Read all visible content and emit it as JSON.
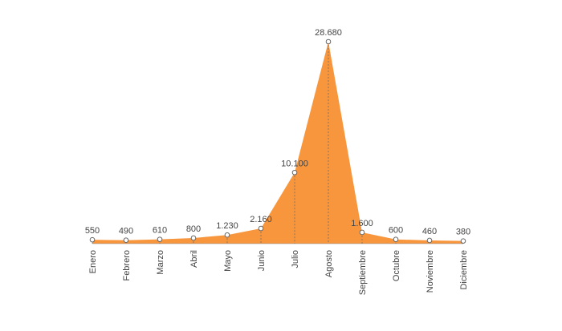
{
  "chart_data": {
    "type": "area",
    "categories": [
      "Enero",
      "Febrero",
      "Marzo",
      "Abril",
      "Mayo",
      "Junio",
      "Julio",
      "Agosto",
      "Septiembre",
      "Octubre",
      "Noviembre",
      "Diciembre"
    ],
    "values": [
      550,
      490,
      610,
      800,
      1230,
      2160,
      10100,
      28680,
      1600,
      600,
      460,
      380
    ],
    "value_labels": [
      "550",
      "490",
      "610",
      "800",
      "1.230",
      "2.160",
      "10.100",
      "28.680",
      "1.600",
      "600",
      "460",
      "380"
    ],
    "color": "#f7963d"
  }
}
